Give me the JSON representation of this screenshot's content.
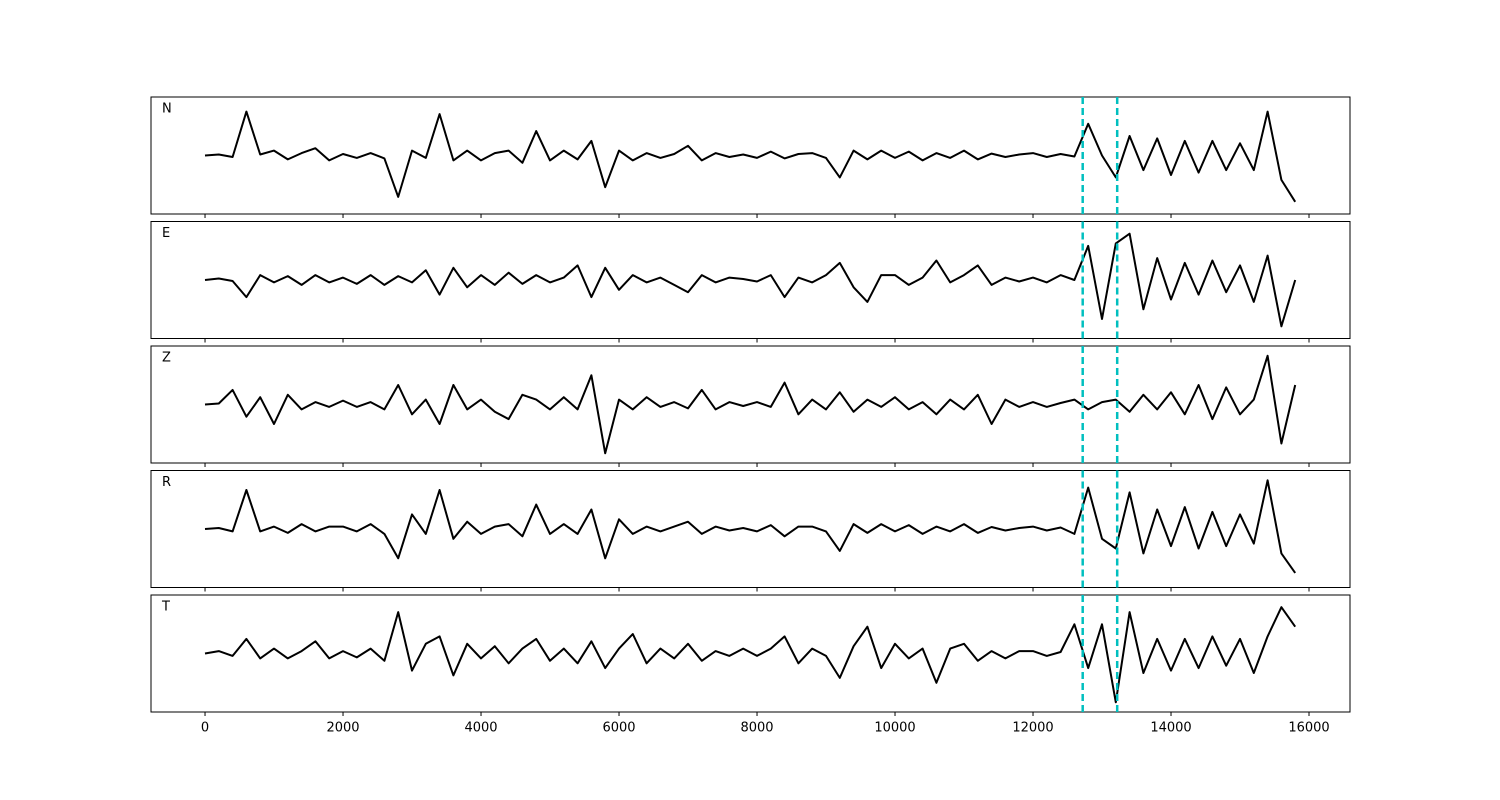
{
  "chart_data": {
    "type": "line",
    "x": [
      0,
      200,
      400,
      600,
      800,
      1000,
      1200,
      1400,
      1600,
      1800,
      2000,
      2200,
      2400,
      2600,
      2800,
      3000,
      3200,
      3400,
      3600,
      3800,
      4000,
      4200,
      4400,
      4600,
      4800,
      5000,
      5200,
      5400,
      5600,
      5800,
      6000,
      6200,
      6400,
      6600,
      6800,
      7000,
      7200,
      7400,
      7600,
      7800,
      8000,
      8200,
      8400,
      8600,
      8800,
      9000,
      9200,
      9400,
      9600,
      9800,
      10000,
      10200,
      10400,
      10600,
      10800,
      11000,
      11200,
      11400,
      11600,
      11800,
      12000,
      12200,
      12400,
      12600,
      12800,
      13000,
      13200,
      13400,
      13600,
      13800,
      14000,
      14200,
      14400,
      14600,
      14800,
      15000,
      15200,
      15400,
      15600,
      15800
    ],
    "xlim": [
      -783,
      16594
    ],
    "xticks": [
      0,
      2000,
      4000,
      6000,
      8000,
      10000,
      12000,
      14000,
      16000
    ],
    "ylim": [
      -1.2,
      1.2
    ],
    "vlines": [
      12720,
      13220
    ],
    "vline_color": "#00bfbf",
    "series": [
      {
        "name": "N",
        "color": "#000000",
        "values": [
          0,
          0.02,
          -0.03,
          0.9,
          0.02,
          0.1,
          -0.08,
          0.05,
          0.15,
          -0.1,
          0.03,
          -0.05,
          0.05,
          -0.06,
          -0.85,
          0.1,
          -0.05,
          0.85,
          -0.1,
          0.1,
          -0.1,
          0.05,
          0.1,
          -0.15,
          0.5,
          -0.1,
          0.1,
          -0.08,
          0.3,
          -0.65,
          0.1,
          -0.1,
          0.05,
          -0.05,
          0.03,
          0.2,
          -0.1,
          0.05,
          -0.03,
          0.02,
          -0.05,
          0.08,
          -0.06,
          0.03,
          0.05,
          -0.05,
          -0.45,
          0.1,
          -0.08,
          0.1,
          -0.05,
          0.08,
          -0.1,
          0.05,
          -0.05,
          0.1,
          -0.08,
          0.04,
          -0.03,
          0.02,
          0.05,
          -0.03,
          0.03,
          -0.02,
          0.65,
          0.0,
          -0.45,
          0.4,
          -0.3,
          0.35,
          -0.4,
          0.3,
          -0.35,
          0.3,
          -0.3,
          0.25,
          -0.3,
          0.9,
          -0.5,
          -0.95
        ]
      },
      {
        "name": "E",
        "color": "#000000",
        "values": [
          0,
          0.03,
          -0.02,
          -0.35,
          0.1,
          -0.05,
          0.08,
          -0.1,
          0.1,
          -0.05,
          0.05,
          -0.08,
          0.1,
          -0.1,
          0.08,
          -0.05,
          0.2,
          -0.3,
          0.25,
          -0.15,
          0.1,
          -0.1,
          0.15,
          -0.08,
          0.1,
          -0.05,
          0.05,
          0.3,
          -0.35,
          0.25,
          -0.2,
          0.1,
          -0.05,
          0.05,
          -0.1,
          -0.25,
          0.1,
          -0.05,
          0.05,
          0.02,
          -0.03,
          0.1,
          -0.35,
          0.05,
          -0.05,
          0.1,
          0.35,
          -0.15,
          -0.45,
          0.1,
          0.1,
          -0.1,
          0.05,
          0.4,
          -0.05,
          0.1,
          0.3,
          -0.1,
          0.05,
          -0.03,
          0.05,
          -0.05,
          0.1,
          0.0,
          0.7,
          -0.8,
          0.75,
          0.95,
          -0.6,
          0.45,
          -0.4,
          0.35,
          -0.3,
          0.4,
          -0.25,
          0.3,
          -0.45,
          0.5,
          -0.95,
          0.0
        ]
      },
      {
        "name": "Z",
        "color": "#000000",
        "values": [
          0,
          0.02,
          0.3,
          -0.25,
          0.15,
          -0.4,
          0.2,
          -0.1,
          0.05,
          -0.05,
          0.08,
          -0.05,
          0.05,
          -0.1,
          0.4,
          -0.2,
          0.1,
          -0.4,
          0.4,
          -0.1,
          0.1,
          -0.15,
          -0.3,
          0.2,
          0.1,
          -0.1,
          0.15,
          -0.1,
          0.6,
          -1.0,
          0.1,
          -0.1,
          0.15,
          -0.05,
          0.05,
          -0.08,
          0.3,
          -0.1,
          0.05,
          -0.03,
          0.05,
          -0.05,
          0.45,
          -0.2,
          0.1,
          -0.1,
          0.25,
          -0.15,
          0.1,
          -0.05,
          0.15,
          -0.1,
          0.05,
          -0.2,
          0.1,
          -0.1,
          0.2,
          -0.4,
          0.1,
          -0.05,
          0.05,
          -0.05,
          0.03,
          0.1,
          -0.1,
          0.05,
          0.1,
          -0.15,
          0.2,
          -0.1,
          0.25,
          -0.2,
          0.4,
          -0.3,
          0.35,
          -0.2,
          0.1,
          1.0,
          -0.8,
          0.4
        ]
      },
      {
        "name": "R",
        "color": "#000000",
        "values": [
          0,
          0.02,
          -0.05,
          0.8,
          -0.05,
          0.05,
          -0.08,
          0.1,
          -0.05,
          0.05,
          0.05,
          -0.05,
          0.1,
          -0.1,
          -0.6,
          0.3,
          -0.1,
          0.8,
          -0.2,
          0.15,
          -0.1,
          0.05,
          0.1,
          -0.15,
          0.5,
          -0.1,
          0.1,
          -0.1,
          0.4,
          -0.6,
          0.2,
          -0.1,
          0.05,
          -0.05,
          0.05,
          0.15,
          -0.1,
          0.05,
          -0.03,
          0.02,
          -0.05,
          0.08,
          -0.15,
          0.05,
          0.05,
          -0.05,
          -0.45,
          0.1,
          -0.08,
          0.1,
          -0.05,
          0.08,
          -0.1,
          0.05,
          -0.05,
          0.1,
          -0.08,
          0.04,
          -0.03,
          0.02,
          0.05,
          -0.03,
          0.03,
          -0.1,
          0.85,
          -0.2,
          -0.4,
          0.75,
          -0.5,
          0.4,
          -0.35,
          0.45,
          -0.4,
          0.35,
          -0.35,
          0.3,
          -0.3,
          1.0,
          -0.5,
          -0.9
        ]
      },
      {
        "name": "T",
        "color": "#000000",
        "values": [
          0,
          0.05,
          -0.05,
          0.3,
          -0.1,
          0.1,
          -0.1,
          0.05,
          0.25,
          -0.1,
          0.05,
          -0.08,
          0.1,
          -0.15,
          0.85,
          -0.35,
          0.2,
          0.35,
          -0.45,
          0.2,
          -0.1,
          0.15,
          -0.2,
          0.1,
          0.3,
          -0.15,
          0.1,
          -0.2,
          0.25,
          -0.3,
          0.1,
          0.4,
          -0.2,
          0.1,
          -0.1,
          0.2,
          -0.15,
          0.05,
          -0.05,
          0.1,
          -0.05,
          0.1,
          0.35,
          -0.2,
          0.1,
          -0.05,
          -0.5,
          0.15,
          0.55,
          -0.3,
          0.2,
          -0.1,
          0.1,
          -0.6,
          0.1,
          0.2,
          -0.15,
          0.05,
          -0.1,
          0.05,
          0.05,
          -0.05,
          0.03,
          0.6,
          -0.3,
          0.6,
          -1.0,
          0.85,
          -0.4,
          0.3,
          -0.35,
          0.3,
          -0.3,
          0.35,
          -0.25,
          0.3,
          -0.4,
          0.35,
          0.95,
          0.55
        ]
      }
    ]
  }
}
